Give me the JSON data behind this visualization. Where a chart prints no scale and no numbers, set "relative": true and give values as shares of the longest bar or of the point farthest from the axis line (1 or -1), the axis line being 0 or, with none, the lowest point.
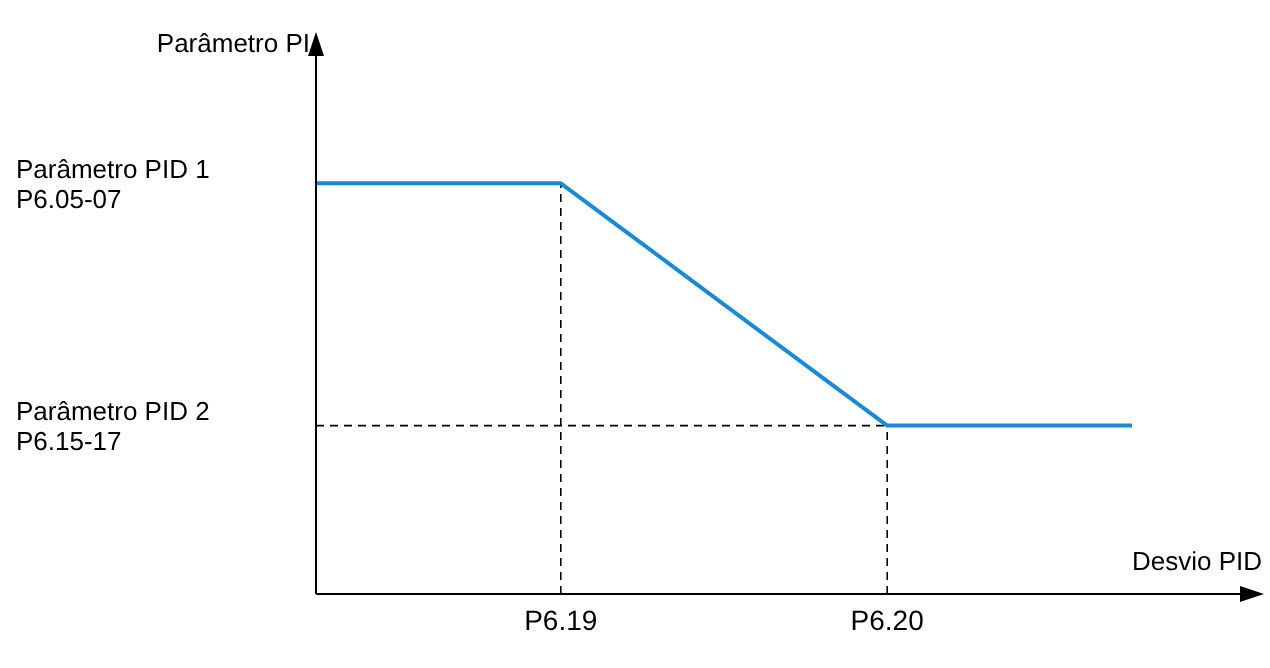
{
  "chart_data": {
    "type": "line",
    "relative": true,
    "xlabel": "Desvio PID",
    "ylabel": "Parâmetro PI",
    "categories": [
      null,
      null,
      null,
      "P6.19",
      null,
      null,
      null,
      "P6.20",
      null,
      null,
      null
    ],
    "series": [
      {
        "color": "#1a8ad4",
        "values": [
          1,
          null,
          null,
          1,
          null,
          null,
          null,
          0.41,
          null,
          null,
          0.41
        ]
      }
    ],
    "annotations": [
      "Parâmetro PID 1\nP6.05-07"
    ],
    "ref_lines": [
      {
        "axis": "x",
        "value": "P6.19",
        "line_style": "dashed",
        "color": "#000000"
      },
      {
        "axis": "x",
        "value": "P6.20",
        "line_style": "dashed",
        "color": "#000000"
      },
      {
        "axis": "y",
        "value": 0.41,
        "line_style": "dashed",
        "color": "#000000",
        "label": "Parâmetro PID 2\nP6.15-17"
      }
    ],
    "marker": "none",
    "grid": false
  }
}
